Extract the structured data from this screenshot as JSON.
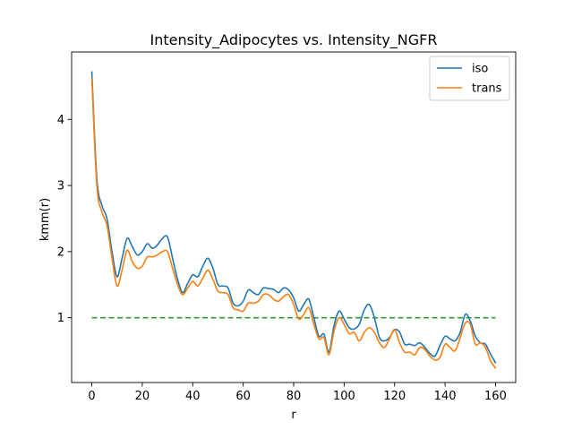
{
  "chart_data": {
    "type": "line",
    "title": "Intensity_Adipocytes vs. Intensity_NGFR",
    "xlabel": "r",
    "ylabel": "kmm(r)",
    "xlim": [
      -8,
      168
    ],
    "ylim": [
      0.02,
      5.02
    ],
    "xticks": [
      0,
      20,
      40,
      60,
      80,
      100,
      120,
      140,
      160
    ],
    "yticks": [
      1,
      2,
      3,
      4
    ],
    "legend_position": "top-right",
    "grid": false,
    "x": [
      0,
      2,
      4,
      6,
      8,
      10,
      12,
      14,
      16,
      18,
      20,
      22,
      24,
      26,
      28,
      30,
      32,
      34,
      36,
      38,
      40,
      42,
      44,
      46,
      48,
      50,
      52,
      54,
      56,
      58,
      60,
      62,
      64,
      66,
      68,
      70,
      72,
      74,
      76,
      78,
      80,
      82,
      84,
      86,
      88,
      90,
      92,
      94,
      96,
      98,
      100,
      102,
      104,
      106,
      108,
      110,
      112,
      114,
      116,
      118,
      120,
      122,
      124,
      126,
      128,
      130,
      132,
      134,
      136,
      138,
      140,
      142,
      144,
      146,
      148,
      150,
      152,
      154,
      156,
      158,
      160
    ],
    "series": [
      {
        "name": "iso",
        "color": "#1f77b4",
        "values": [
          4.72,
          3.1,
          2.7,
          2.5,
          2.0,
          1.62,
          1.9,
          2.2,
          2.08,
          1.95,
          2.0,
          2.12,
          2.05,
          2.1,
          2.2,
          2.22,
          1.9,
          1.58,
          1.38,
          1.52,
          1.65,
          1.62,
          1.78,
          1.9,
          1.75,
          1.5,
          1.48,
          1.45,
          1.22,
          1.18,
          1.25,
          1.42,
          1.38,
          1.35,
          1.45,
          1.44,
          1.43,
          1.38,
          1.45,
          1.42,
          1.3,
          1.1,
          1.2,
          1.28,
          1.0,
          0.72,
          0.75,
          0.48,
          0.88,
          1.1,
          0.98,
          0.85,
          0.83,
          0.9,
          1.12,
          1.2,
          1.0,
          0.7,
          0.65,
          0.7,
          0.82,
          0.78,
          0.6,
          0.6,
          0.58,
          0.62,
          0.55,
          0.46,
          0.42,
          0.58,
          0.72,
          0.68,
          0.65,
          0.78,
          1.05,
          0.95,
          0.72,
          0.62,
          0.6,
          0.45,
          0.32
        ]
      },
      {
        "name": "trans",
        "color": "#ff7f0e",
        "values": [
          4.62,
          3.0,
          2.6,
          2.4,
          1.9,
          1.48,
          1.72,
          2.02,
          1.85,
          1.75,
          1.78,
          1.92,
          1.92,
          1.95,
          2.0,
          2.0,
          1.75,
          1.5,
          1.35,
          1.45,
          1.55,
          1.48,
          1.6,
          1.72,
          1.58,
          1.4,
          1.38,
          1.35,
          1.15,
          1.12,
          1.1,
          1.22,
          1.22,
          1.25,
          1.35,
          1.35,
          1.28,
          1.25,
          1.32,
          1.35,
          1.2,
          0.98,
          1.05,
          1.15,
          0.9,
          0.68,
          0.7,
          0.44,
          0.8,
          1.0,
          0.9,
          0.76,
          0.78,
          0.65,
          0.78,
          0.85,
          0.78,
          0.62,
          0.55,
          0.68,
          0.82,
          0.62,
          0.48,
          0.48,
          0.44,
          0.55,
          0.52,
          0.42,
          0.36,
          0.4,
          0.6,
          0.55,
          0.5,
          0.7,
          0.92,
          0.9,
          0.6,
          0.62,
          0.55,
          0.35,
          0.24
        ]
      }
    ],
    "reference_line": {
      "y": 1.0,
      "x_range": [
        0,
        160
      ],
      "style": "dashed",
      "color": "#2ca02c"
    }
  }
}
